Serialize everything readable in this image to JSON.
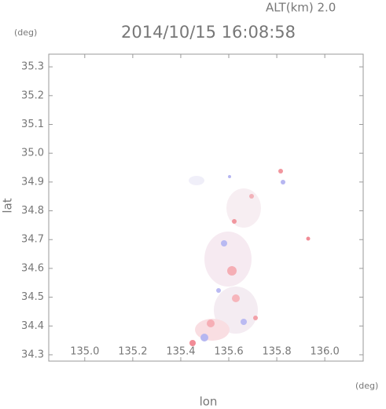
{
  "chart_data": {
    "type": "map",
    "annotation": "ALT(km) 2.0",
    "title": "2014/10/15 16:08:58",
    "y_unit": "(deg)",
    "x_unit": "(deg)",
    "x_label": "lon",
    "y_label": "lat",
    "xlim": [
      134.85,
      136.16
    ],
    "ylim": [
      34.278,
      35.344
    ],
    "xticks": [
      {
        "value": 135,
        "label": "135.0"
      },
      135.2,
      135.4,
      135.6,
      135.8,
      {
        "value": 136,
        "label": "136.0"
      }
    ],
    "yticks": [
      34.3,
      34.4,
      34.5,
      34.6,
      34.7,
      34.8,
      34.9,
      {
        "value": 35,
        "label": "35.0"
      },
      35.1,
      35.2,
      35.3
    ]
  }
}
